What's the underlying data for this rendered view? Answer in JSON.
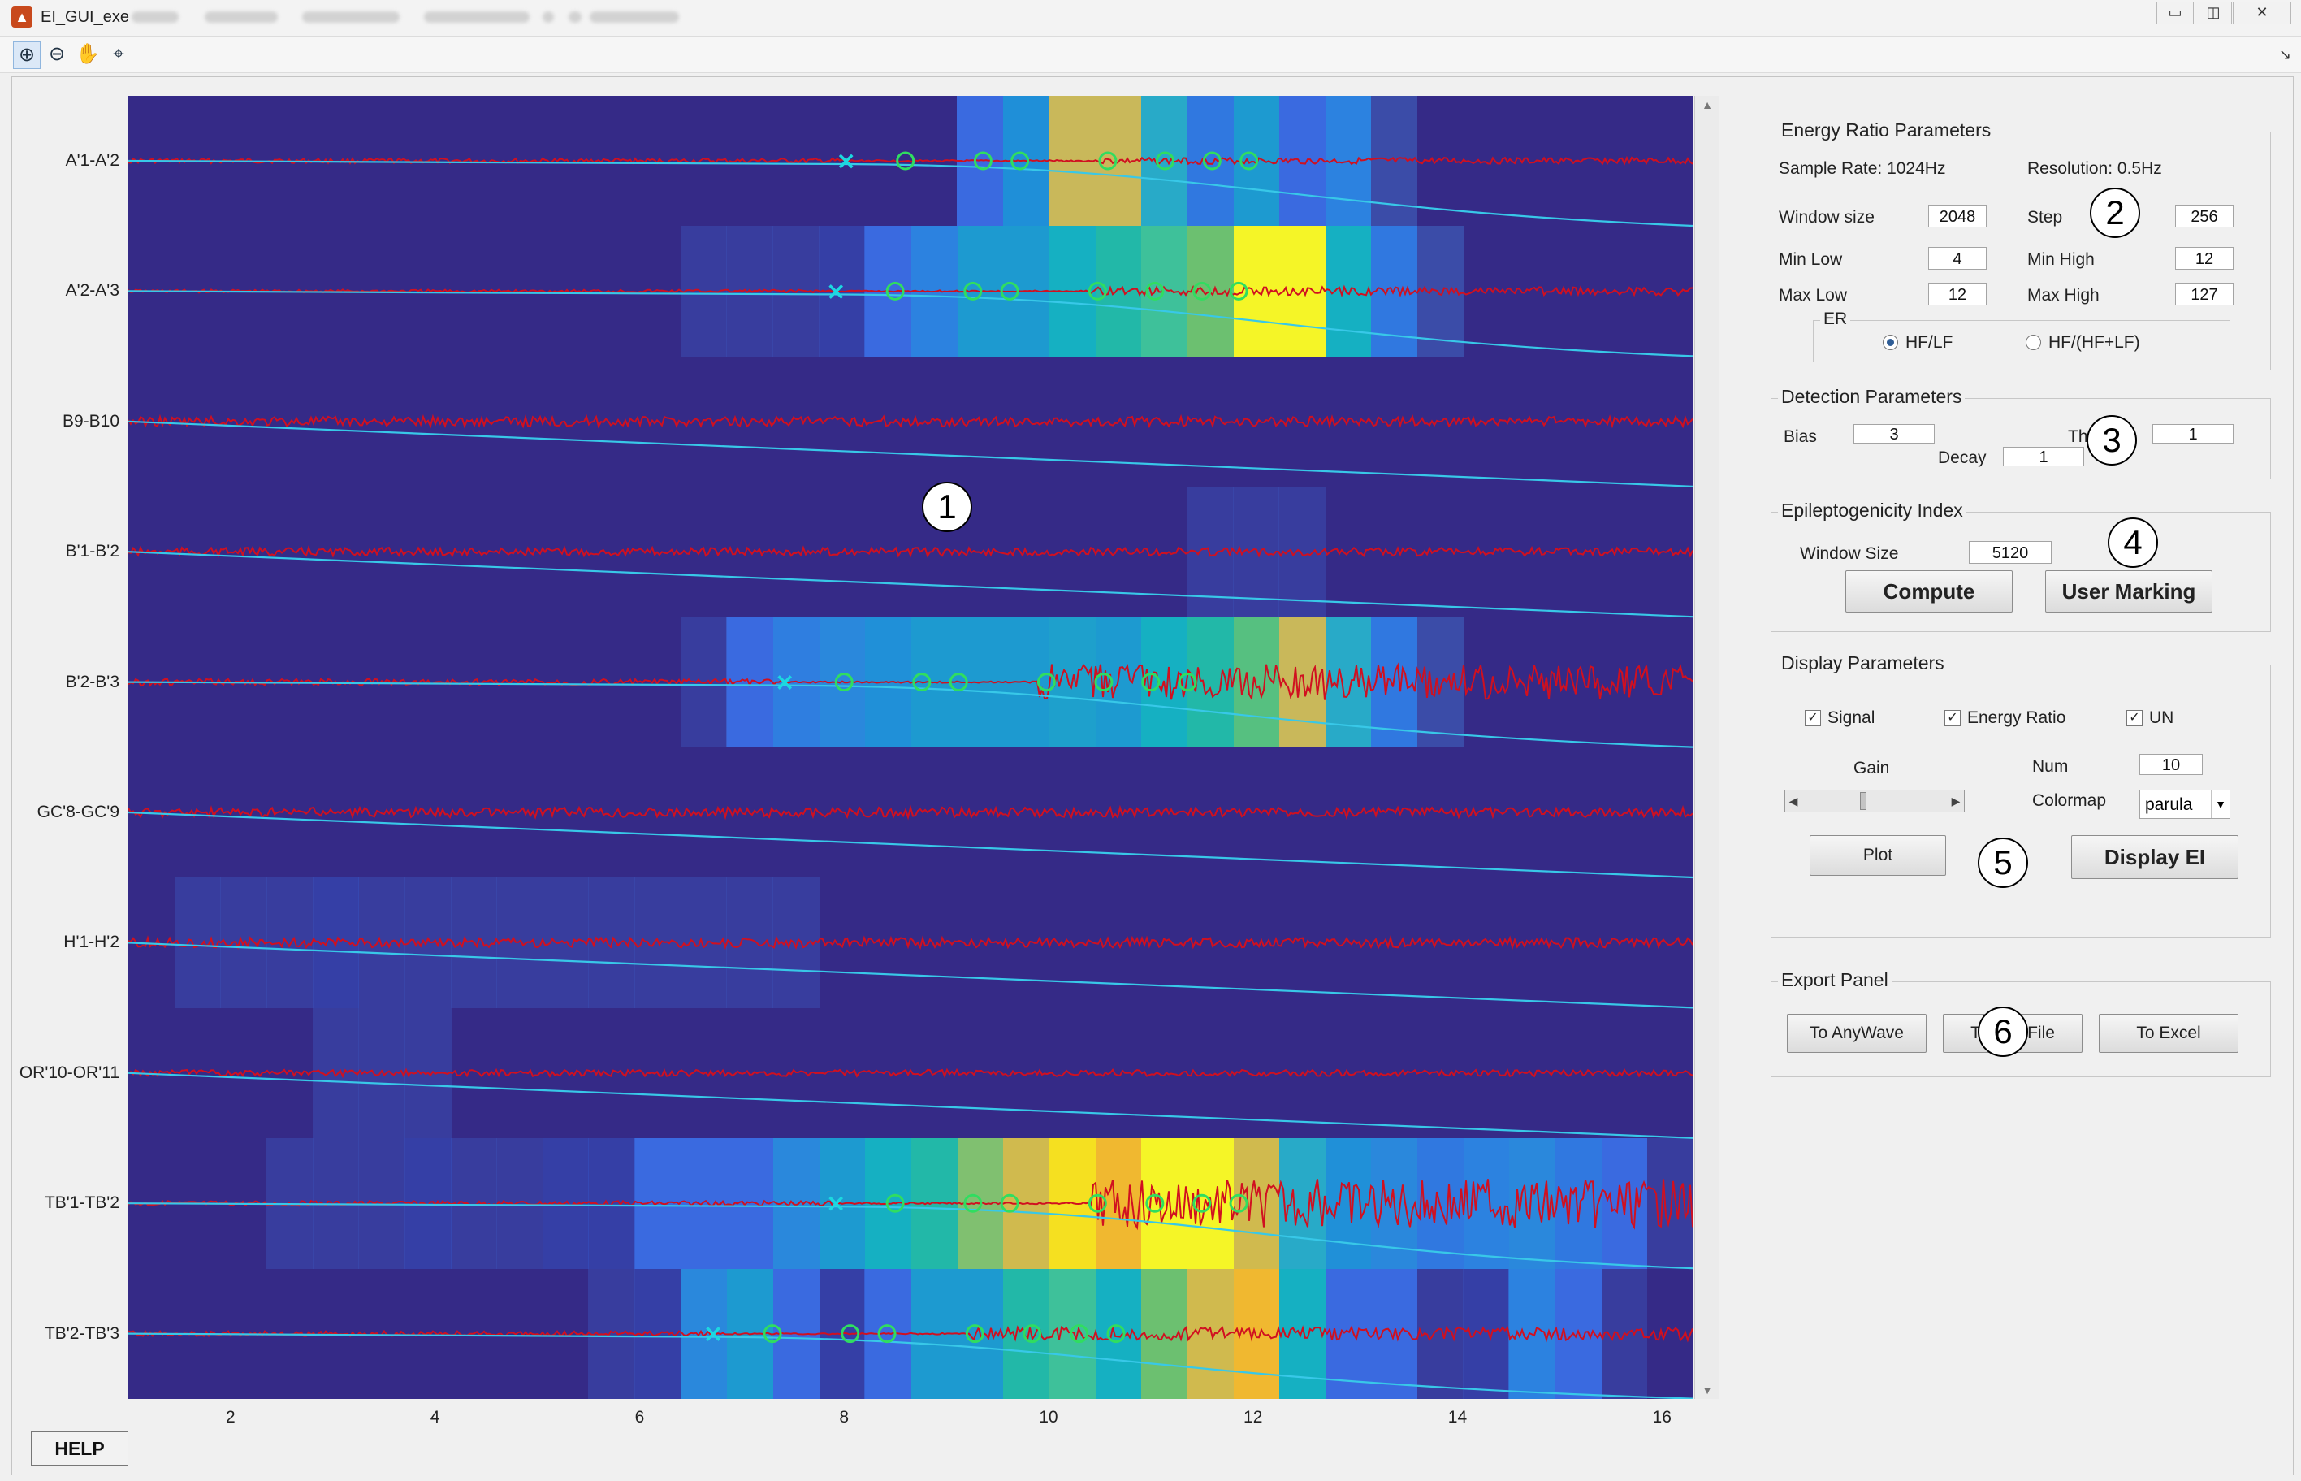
{
  "window": {
    "title": "EI_GUI_exe",
    "min": "▭",
    "max": "◫",
    "close": "✕",
    "app_icon": "matlab-icon"
  },
  "menu_items_blurred": 7,
  "toolbar": {
    "tools": [
      "zoom-in-icon",
      "zoom-out-icon",
      "pan-icon",
      "data-cursor-icon"
    ],
    "dock": "↘"
  },
  "channels": [
    "A'1-A'2",
    "A'2-A'3",
    "B9-B10",
    "B'1-B'2",
    "B'2-B'3",
    "GC'8-GC'9",
    "H'1-H'2",
    "OR'10-OR'11",
    "TB'1-TB'2",
    "TB'2-TB'3"
  ],
  "x_ticks": [
    "2",
    "4",
    "6",
    "8",
    "10",
    "12",
    "14",
    "16"
  ],
  "chart_data": {
    "type": "heatmap",
    "x": {
      "ticks": [
        2,
        4,
        6,
        8,
        10,
        12,
        14,
        16
      ],
      "range": [
        1,
        16.3
      ]
    },
    "colormap": "parula",
    "series_colors": {
      "signal": "#d01020",
      "cumulative": "#38c8e8",
      "onset_marker": "#1cd8e0",
      "detection_marker": "#30dd60"
    }
  },
  "helpbutton": "HELP",
  "markers": [
    "1",
    "2",
    "3",
    "4",
    "5",
    "6"
  ],
  "energy": {
    "title": "Energy Ratio Parameters",
    "sample_rate": "Sample Rate: 1024Hz",
    "resolution": "Resolution: 0.5Hz",
    "window_size_label": "Window size",
    "window_size": "2048",
    "step_label": "Step",
    "step": "256",
    "min_low_label": "Min Low",
    "min_low": "4",
    "min_high_label": "Min High",
    "min_high": "12",
    "max_low_label": "Max Low",
    "max_low": "12",
    "max_high_label": "Max High",
    "max_high": "127",
    "er_label": "ER",
    "opt1": "HF/LF",
    "opt2": "HF/(HF+LF)"
  },
  "detection": {
    "title": "Detection Parameters",
    "bias_label": "Bias",
    "bias": "3",
    "th_label": "Th",
    "th": "1",
    "decay_label": "Decay",
    "decay": "1"
  },
  "ei": {
    "title": "Epileptogenicity Index",
    "window_size_label": "Window Size",
    "window_size": "5120",
    "compute": "Compute",
    "user_marking": "User Marking"
  },
  "display": {
    "title": "Display Parameters",
    "signal": "Signal",
    "energy_ratio": "Energy Ratio",
    "un": "UN",
    "gain_label": "Gain",
    "num_label": "Num",
    "num": "10",
    "colormap_label": "Colormap",
    "colormap": "parula",
    "plot": "Plot",
    "display_ei": "Display EI"
  },
  "export": {
    "title": "Export Panel",
    "to_anywave": "To AnyWave",
    "to_file": "To File",
    "to_excel": "To Excel"
  }
}
